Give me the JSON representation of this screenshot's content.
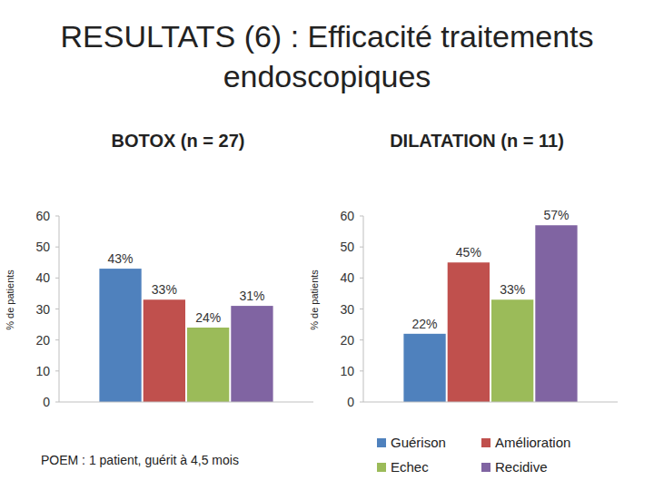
{
  "title": "RESULTATS (6) : Efficacité traitements endoscopiques",
  "note": "POEM : 1 patient, guérit à 4,5 mois",
  "chart_data": [
    {
      "type": "bar",
      "title": "BOTOX (n = 27)",
      "y_label": "% de patients",
      "categories": [
        null
      ],
      "series": [
        {
          "color": "#4f81bd",
          "values": [
            43
          ],
          "value_labels": [
            "43%"
          ]
        },
        {
          "color": "#c0504d",
          "values": [
            33
          ],
          "value_labels": [
            "33%"
          ]
        },
        {
          "color": "#9bbb59",
          "values": [
            24
          ],
          "value_labels": [
            "24%"
          ]
        },
        {
          "color": "#8064a2",
          "values": [
            31
          ],
          "value_labels": [
            "31%"
          ]
        }
      ],
      "ylim": [
        0,
        60
      ],
      "yticks": [
        0,
        10,
        20,
        30,
        40,
        50,
        60
      ],
      "grid": false,
      "data_labels": true,
      "tick_labels": "y"
    },
    {
      "type": "bar",
      "title": "DILATATION (n = 11)",
      "y_label": "% de patients",
      "categories": [
        null
      ],
      "series": [
        {
          "name": "Guérison",
          "color": "#4f81bd",
          "values": [
            22
          ],
          "value_labels": [
            "22%"
          ]
        },
        {
          "name": "Amélioration",
          "color": "#c0504d",
          "values": [
            45
          ],
          "value_labels": [
            "45%"
          ]
        },
        {
          "name": "Echec",
          "color": "#9bbb59",
          "values": [
            33
          ],
          "value_labels": [
            "33%"
          ]
        },
        {
          "name": "Recidive",
          "color": "#8064a2",
          "values": [
            57
          ],
          "value_labels": [
            "57%"
          ]
        }
      ],
      "ylim": [
        0,
        60
      ],
      "yticks": [
        0,
        10,
        20,
        30,
        40,
        50,
        60
      ],
      "grid": false,
      "data_labels": true,
      "tick_labels": "y",
      "legend": "bottom"
    }
  ]
}
